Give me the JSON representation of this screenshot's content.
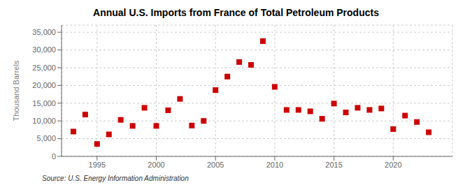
{
  "chart_data": {
    "type": "scatter",
    "title": "Annual U.S. Imports from France of Total Petroleum Products",
    "ylabel": "Thousand Barrels",
    "source": "Source: U.S. Energy Information Administration",
    "color": "#cc0000",
    "marker": "square",
    "grid": true,
    "xlim": [
      1992,
      2025
    ],
    "ylim": [
      0,
      37000
    ],
    "xticks": [
      1995,
      2000,
      2005,
      2010,
      2015,
      2020
    ],
    "yticks": [
      0,
      {
        "value": 5000,
        "label": "5,000"
      },
      {
        "value": 10000,
        "label": "10,000"
      },
      {
        "value": 15000,
        "label": "15,000"
      },
      {
        "value": 20000,
        "label": "20,000"
      },
      {
        "value": 25000,
        "label": "25,000"
      },
      {
        "value": 30000,
        "label": "30,000"
      },
      {
        "value": 35000,
        "label": "35,000"
      }
    ],
    "x": [
      1993,
      1994,
      1995,
      1996,
      1997,
      1998,
      1999,
      2000,
      2001,
      2002,
      2003,
      2004,
      2005,
      2006,
      2007,
      2008,
      2009,
      2010,
      2011,
      2012,
      2013,
      2014,
      2015,
      2016,
      2017,
      2018,
      2019,
      2020,
      2021,
      2022,
      2023
    ],
    "values": [
      7000,
      11800,
      3500,
      6200,
      10300,
      8600,
      13700,
      8600,
      13000,
      16200,
      8700,
      10000,
      18700,
      22500,
      26600,
      25800,
      32500,
      19600,
      13100,
      13100,
      12700,
      10600,
      14900,
      12400,
      13700,
      13100,
      13500,
      7700,
      11500,
      9700,
      6800
    ]
  }
}
